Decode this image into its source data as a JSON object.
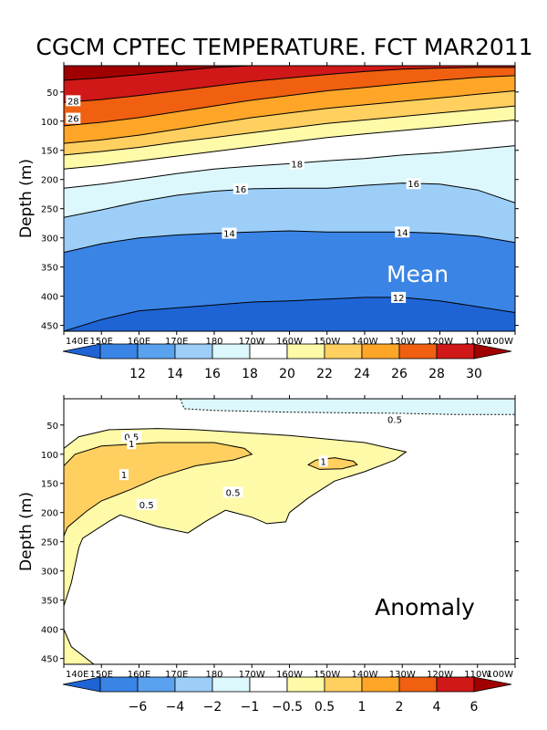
{
  "title": "CGCM CPTEC TEMPERATURE. FCT MAR2011",
  "chart_data": [
    {
      "type": "heatmap",
      "panel_label": "Mean",
      "ylabel": "Depth (m)",
      "x_tick_labels": [
        "140E",
        "150E",
        "160E",
        "170E",
        "180",
        "170W",
        "160W",
        "150W",
        "140W",
        "130W",
        "120W",
        "110W",
        "100W"
      ],
      "xlim": [
        140,
        260
      ],
      "y_tick_labels": [
        "50",
        "100",
        "150",
        "200",
        "250",
        "300",
        "350",
        "400",
        "450"
      ],
      "y_ticks": [
        50,
        100,
        150,
        200,
        250,
        300,
        350,
        400,
        450
      ],
      "ylim": [
        460,
        5
      ],
      "x": [
        140,
        150,
        160,
        170,
        180,
        190,
        200,
        210,
        220,
        230,
        240,
        250,
        260
      ],
      "isotherm_depths": [
        {
          "level": 30,
          "depths": [
            30,
            26,
            20,
            14,
            8,
            5,
            null,
            null,
            null,
            null,
            null,
            null,
            null
          ]
        },
        {
          "level": 28,
          "depths": [
            68,
            63,
            56,
            48,
            40,
            32,
            26,
            20,
            15,
            11,
            9,
            8,
            8
          ]
        },
        {
          "level": 26,
          "depths": [
            108,
            102,
            94,
            84,
            74,
            64,
            56,
            48,
            42,
            36,
            30,
            25,
            22
          ]
        },
        {
          "level": 24,
          "depths": [
            138,
            132,
            124,
            114,
            104,
            94,
            86,
            78,
            72,
            66,
            60,
            54,
            48
          ]
        },
        {
          "level": 22,
          "depths": [
            158,
            152,
            145,
            136,
            128,
            120,
            112,
            104,
            98,
            92,
            86,
            80,
            74
          ]
        },
        {
          "level": 20,
          "depths": [
            182,
            176,
            168,
            160,
            152,
            144,
            136,
            128,
            122,
            116,
            110,
            104,
            98
          ]
        },
        {
          "level": 18,
          "depths": [
            215,
            208,
            199,
            190,
            182,
            177,
            173,
            168,
            164,
            158,
            154,
            148,
            142
          ]
        },
        {
          "level": 16,
          "depths": [
            265,
            252,
            238,
            227,
            220,
            216,
            215,
            215,
            210,
            206,
            208,
            218,
            240
          ]
        },
        {
          "level": 14,
          "depths": [
            325,
            310,
            300,
            295,
            292,
            290,
            288,
            290,
            290,
            290,
            292,
            297,
            308
          ]
        },
        {
          "level": 12,
          "depths": [
            460,
            440,
            425,
            420,
            415,
            410,
            408,
            405,
            402,
            402,
            408,
            418,
            428
          ]
        }
      ],
      "contour_labels": [
        {
          "text": "28",
          "x": 142.5,
          "y": 65
        },
        {
          "text": "26",
          "x": 142.5,
          "y": 95
        },
        {
          "text": "18",
          "x": 202,
          "y": 173
        },
        {
          "text": "16",
          "x": 187,
          "y": 216
        },
        {
          "text": "16",
          "x": 233,
          "y": 207
        },
        {
          "text": "14",
          "x": 184,
          "y": 292
        },
        {
          "text": "14",
          "x": 230,
          "y": 290
        },
        {
          "text": "12",
          "x": 229,
          "y": 402
        }
      ],
      "colorbar": {
        "tick_labels": [
          "12",
          "14",
          "16",
          "18",
          "20",
          "22",
          "24",
          "26",
          "28",
          "30"
        ],
        "colors": [
          "#1e64d4",
          "#3a84e6",
          "#5aa2f0",
          "#9ccef8",
          "#dcf8fc",
          "#ffffff",
          "#fffaa8",
          "#ffd060",
          "#ffa628",
          "#f06010",
          "#d01818",
          "#a00000"
        ]
      }
    },
    {
      "type": "heatmap",
      "panel_label": "Anomaly",
      "ylabel": "Depth (m)",
      "x_tick_labels": [
        "140E",
        "150E",
        "160E",
        "170E",
        "180",
        "170W",
        "160W",
        "150W",
        "140W",
        "130W",
        "120W",
        "110W",
        "100W"
      ],
      "xlim": [
        140,
        260
      ],
      "y_tick_labels": [
        "50",
        "100",
        "150",
        "200",
        "250",
        "300",
        "350",
        "400",
        "450"
      ],
      "y_ticks": [
        50,
        100,
        150,
        200,
        250,
        300,
        350,
        400,
        450
      ],
      "ylim": [
        460,
        5
      ],
      "contours": [
        {
          "level": -0.5,
          "fill": "#dcf8fc",
          "dashed": true,
          "points": [
            [
              171,
              5
            ],
            [
              172,
              22
            ],
            [
              180,
              25
            ],
            [
              200,
              28
            ],
            [
              230,
              30
            ],
            [
              245,
              32
            ],
            [
              260,
              32
            ],
            [
              260,
              5
            ]
          ]
        },
        {
          "level": 0.5,
          "fill": "#fffaa8",
          "dashed": false,
          "points": [
            [
              140,
              90
            ],
            [
              144,
              70
            ],
            [
              152,
              58
            ],
            [
              165,
              56
            ],
            [
              175,
              58
            ],
            [
              200,
              68
            ],
            [
              220,
              80
            ],
            [
              231,
              96
            ],
            [
              228,
              110
            ],
            [
              220,
              130
            ],
            [
              212,
              146
            ],
            [
              205,
              175
            ],
            [
              200,
              200
            ],
            [
              199,
              216
            ],
            [
              194,
              219
            ],
            [
              190,
              208
            ],
            [
              183,
              196
            ],
            [
              178,
              214
            ],
            [
              173,
              235
            ],
            [
              165,
              224
            ],
            [
              155,
              204
            ],
            [
              152,
              215
            ],
            [
              145,
              244
            ],
            [
              144,
              260
            ],
            [
              142,
              320
            ],
            [
              140,
              360
            ],
            [
              140,
              400
            ],
            [
              142,
              430
            ],
            [
              148,
              460
            ],
            [
              140,
              460
            ]
          ]
        },
        {
          "level": 1.0,
          "fill": "#ffd060",
          "dashed": false,
          "points": [
            [
              140,
              120
            ],
            [
              143,
              100
            ],
            [
              150,
              86
            ],
            [
              165,
              80
            ],
            [
              180,
              80
            ],
            [
              188,
              90
            ],
            [
              190,
              100
            ],
            [
              185,
              110
            ],
            [
              175,
              120
            ],
            [
              165,
              140
            ],
            [
              158,
              160
            ],
            [
              150,
              180
            ],
            [
              146,
              198
            ],
            [
              141,
              225
            ],
            [
              140,
              240
            ]
          ]
        },
        {
          "level": 1.0,
          "fill": "#ffd060",
          "dashed": false,
          "points": [
            [
              205,
              118
            ],
            [
              207,
              110
            ],
            [
              212,
              106
            ],
            [
              217,
              112
            ],
            [
              218,
              118
            ],
            [
              214,
              125
            ],
            [
              208,
              126
            ]
          ]
        }
      ],
      "contour_labels": [
        {
          "text": "0.5",
          "x": 158,
          "y": 70
        },
        {
          "text": "1",
          "x": 158,
          "y": 82
        },
        {
          "text": "0.5",
          "x": 228,
          "y": 40
        },
        {
          "text": "1",
          "x": 209,
          "y": 112
        },
        {
          "text": "1",
          "x": 156,
          "y": 135
        },
        {
          "text": "0.5",
          "x": 185,
          "y": 165
        },
        {
          "text": "0.5",
          "x": 162,
          "y": 186
        }
      ],
      "colorbar": {
        "tick_labels": [
          "−6",
          "−4",
          "−2",
          "−1",
          "−0.5",
          "0.5",
          "1",
          "2",
          "4",
          "6"
        ],
        "colors": [
          "#1e64d4",
          "#3a84e6",
          "#5aa2f0",
          "#9ccef8",
          "#dcf8fc",
          "#ffffff",
          "#fffaa8",
          "#ffd060",
          "#ffa628",
          "#f06010",
          "#d01818",
          "#a00000"
        ]
      }
    }
  ]
}
